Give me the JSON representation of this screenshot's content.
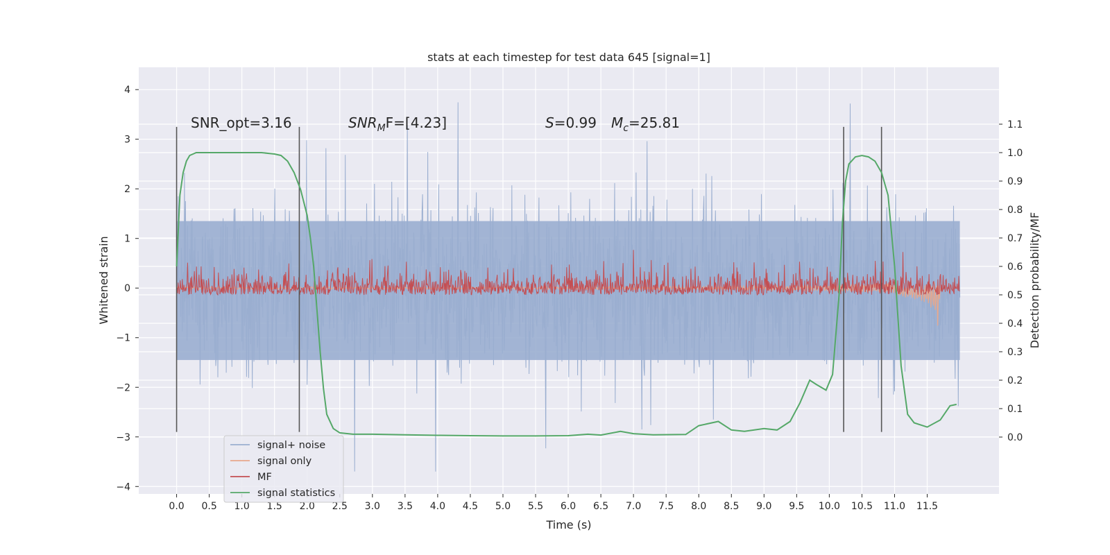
{
  "chart_data": {
    "type": "line",
    "title": "stats at each timestep for test data 645 [signal=1]",
    "xlabel": "Time (s)",
    "ylabel": "Whitened strain",
    "y2label": "Detection probability/MF",
    "xlim": [
      -0.58,
      12.6
    ],
    "ylim": [
      -4.15,
      4.45
    ],
    "y2lim": [
      -0.2,
      1.3
    ],
    "xticks": [
      0.0,
      0.5,
      1.0,
      1.5,
      2.0,
      2.5,
      3.0,
      3.5,
      4.0,
      4.5,
      5.0,
      5.5,
      6.0,
      6.5,
      7.0,
      7.5,
      8.0,
      8.5,
      9.0,
      9.5,
      10.0,
      10.5,
      11.0,
      11.5
    ],
    "xtick_labels": [
      "0.0",
      "0.5",
      "1.0",
      "1.5",
      "2.0",
      "2.5",
      "3.0",
      "3.5",
      "4.0",
      "4.5",
      "5.0",
      "5.5",
      "6.0",
      "6.5",
      "7.0",
      "7.5",
      "8.0",
      "8.5",
      "9.0",
      "9.5",
      "10.0",
      "10.5",
      "11.0",
      "11.5"
    ],
    "yticks": [
      4,
      3,
      2,
      1,
      0,
      -1,
      -2,
      -3,
      -4
    ],
    "ytick_labels": [
      "4",
      "3",
      "2",
      "1",
      "0",
      "−1",
      "−2",
      "−3",
      "−4"
    ],
    "y2ticks": [
      1.1,
      1.0,
      0.9,
      0.8,
      0.7,
      0.6,
      0.5,
      0.4,
      0.3,
      0.2,
      0.1,
      0.0
    ],
    "y2tick_labels": [
      "1.1",
      "1.0",
      "0.9",
      "0.8",
      "0.7",
      "0.6",
      "0.5",
      "0.4",
      "0.3",
      "0.2",
      "0.1",
      "0.0"
    ],
    "grid": true,
    "legend_position": "lower-left",
    "annotations": {
      "snr_opt": "SNR_opt=3.16",
      "snr_mf_main": "SNR",
      "snr_mf_sub": "M",
      "snr_mf_rest": "F=[4.23]",
      "s_main": "S",
      "s_rest": "=0.99",
      "mc_main": "M",
      "mc_sub": "c",
      "mc_rest": "=25.81"
    },
    "series": [
      {
        "name": "signal+ noise",
        "color": "#9aaed0",
        "t_range": [
          0.0,
          12.0
        ],
        "band_envelope": [
          -1.45,
          1.35
        ],
        "peak_max": 4.1,
        "peak_min": -3.7
      },
      {
        "name": "signal only",
        "color": "#e8a88c",
        "t": [
          0.0,
          1.0,
          2.0,
          3.0,
          4.0,
          5.0,
          6.0,
          7.0,
          8.0,
          9.0,
          9.5,
          10.0,
          10.5,
          11.0,
          11.2,
          11.4,
          11.5,
          11.6,
          11.65,
          11.68,
          11.7
        ],
        "amp": [
          0.02,
          0.02,
          0.02,
          0.02,
          0.02,
          0.02,
          0.025,
          0.03,
          0.035,
          0.04,
          0.05,
          0.06,
          0.08,
          0.1,
          0.12,
          0.16,
          0.2,
          0.28,
          0.4,
          0.6,
          0.0
        ]
      },
      {
        "name": "MF",
        "color": "#c44e52",
        "t_range": [
          0.0,
          12.0
        ],
        "band": [
          0.0,
          0.45
        ],
        "peak_max": 0.95
      },
      {
        "name": "signal statistics",
        "color": "#55a868",
        "t": [
          0.0,
          0.05,
          0.1,
          0.15,
          0.2,
          0.3,
          0.5,
          0.8,
          1.0,
          1.3,
          1.5,
          1.6,
          1.7,
          1.8,
          1.9,
          2.0,
          2.05,
          2.1,
          2.15,
          2.2,
          2.25,
          2.3,
          2.4,
          2.5,
          2.7,
          3.0,
          3.5,
          4.0,
          4.5,
          5.0,
          5.5,
          6.0,
          6.3,
          6.5,
          6.8,
          7.0,
          7.3,
          7.8,
          8.0,
          8.3,
          8.5,
          8.7,
          9.0,
          9.2,
          9.4,
          9.55,
          9.7,
          9.8,
          9.95,
          10.05,
          10.15,
          10.2,
          10.25,
          10.3,
          10.4,
          10.5,
          10.6,
          10.7,
          10.8,
          10.9,
          11.0,
          11.1,
          11.2,
          11.3,
          11.5,
          11.7,
          11.85,
          11.95
        ],
        "values": [
          0.6,
          0.85,
          0.93,
          0.97,
          0.99,
          1.0,
          1.0,
          1.0,
          1.0,
          1.0,
          0.995,
          0.99,
          0.97,
          0.93,
          0.87,
          0.78,
          0.7,
          0.6,
          0.45,
          0.3,
          0.17,
          0.08,
          0.03,
          0.015,
          0.01,
          0.01,
          0.008,
          0.006,
          0.005,
          0.004,
          0.004,
          0.005,
          0.01,
          0.007,
          0.02,
          0.012,
          0.008,
          0.009,
          0.04,
          0.055,
          0.025,
          0.02,
          0.03,
          0.025,
          0.055,
          0.12,
          0.2,
          0.185,
          0.165,
          0.22,
          0.5,
          0.75,
          0.9,
          0.96,
          0.985,
          0.99,
          0.985,
          0.97,
          0.93,
          0.85,
          0.6,
          0.25,
          0.08,
          0.05,
          0.035,
          0.06,
          0.11,
          0.115
        ]
      }
    ],
    "vertical_lines": {
      "color": "#555555",
      "x": [
        0.0,
        1.88,
        10.22,
        10.8
      ],
      "y_range": [
        -2.9,
        3.25
      ]
    }
  }
}
